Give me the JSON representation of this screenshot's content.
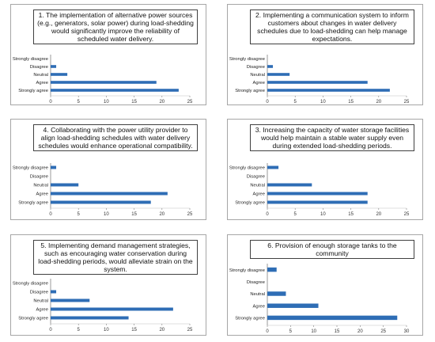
{
  "chart_data": [
    {
      "type": "bar",
      "orientation": "horizontal",
      "title": "1. The implementation of alternative power sources (e.g., generators, solar power) during load-shedding would significantly improve the reliability of scheduled water delivery.",
      "categories": [
        "Strongly disagree",
        "Disagree",
        "Neutral",
        "Agree",
        "Strongly agree"
      ],
      "values": [
        0,
        1,
        3,
        19,
        23
      ],
      "xlim": [
        0,
        25
      ],
      "xticks": [
        0,
        5,
        10,
        15,
        20,
        25
      ],
      "xtick_labels": [
        "0",
        "5",
        "10",
        "15",
        "20",
        "25"
      ],
      "color": "#2e6db5"
    },
    {
      "type": "bar",
      "orientation": "horizontal",
      "title": "2. Implementing a communication system to inform customers about changes in water delivery schedules due to load-shedding can help manage expectations.",
      "categories": [
        "Strongly disagree",
        "Disagree",
        "Neutral",
        "Agree",
        "Strongly agree"
      ],
      "values": [
        0,
        1,
        4,
        18,
        22
      ],
      "xlim": [
        0,
        25
      ],
      "xticks": [
        0,
        5,
        10,
        15,
        20,
        25
      ],
      "xtick_labels": [
        "0",
        "5",
        "10",
        "15",
        "20",
        "25"
      ],
      "color": "#2e6db5"
    },
    {
      "type": "bar",
      "orientation": "horizontal",
      "title": "4. Collaborating with the power utility provider to align load-shedding schedules with water delivery schedules would enhance operational compatibility.",
      "categories": [
        "Strongly disagree",
        "Disagree",
        "Neutral",
        "Agree",
        "Strongly agree"
      ],
      "values": [
        1,
        0,
        5,
        21,
        18
      ],
      "xlim": [
        0,
        25
      ],
      "xticks": [
        0,
        5,
        10,
        15,
        20,
        25
      ],
      "xtick_labels": [
        "0",
        "5",
        "10",
        "15",
        "20",
        "25"
      ],
      "color": "#2e6db5"
    },
    {
      "type": "bar",
      "orientation": "horizontal",
      "title": "3. Increasing the capacity of water storage facilities would help maintain a stable water supply even during extended load-shedding periods.",
      "categories": [
        "Strongly disagree",
        "Disagree",
        "Neutral",
        "Agree",
        "Strongly agree"
      ],
      "values": [
        2,
        0,
        8,
        18,
        18
      ],
      "xlim": [
        0,
        25
      ],
      "xticks": [
        0,
        5,
        10,
        15,
        20,
        25
      ],
      "xtick_labels": [
        "0",
        "5",
        "10",
        "15",
        "20",
        "25"
      ],
      "color": "#2e6db5"
    },
    {
      "type": "bar",
      "orientation": "horizontal",
      "title": "5. Implementing demand management strategies, such as encouraging water conservation during load-shedding periods, would alleviate strain on the system.",
      "categories": [
        "Strongly disagree",
        "Disagree",
        "Neutral",
        "Agree",
        "Strongly agree"
      ],
      "values": [
        0,
        1,
        7,
        22,
        14
      ],
      "xlim": [
        0,
        25
      ],
      "xticks": [
        0,
        5,
        10,
        15,
        20,
        25
      ],
      "xtick_labels": [
        "0",
        "5",
        "10",
        "15",
        "20",
        "25"
      ],
      "color": "#2e6db5"
    },
    {
      "type": "bar",
      "orientation": "horizontal",
      "title": "6. Provision of enough storage tanks to the community",
      "categories": [
        "Strongly disagree",
        "Disagree",
        "Neutral",
        "Agree",
        "Strongly agree"
      ],
      "values": [
        2,
        0,
        4,
        11,
        28
      ],
      "xlim": [
        0,
        30
      ],
      "xticks": [
        0,
        5,
        10,
        15,
        20,
        25,
        30
      ],
      "xtick_labels": [
        "0",
        "5",
        "10",
        "15",
        "20",
        "25",
        "30"
      ],
      "color": "#2e6db5"
    }
  ]
}
